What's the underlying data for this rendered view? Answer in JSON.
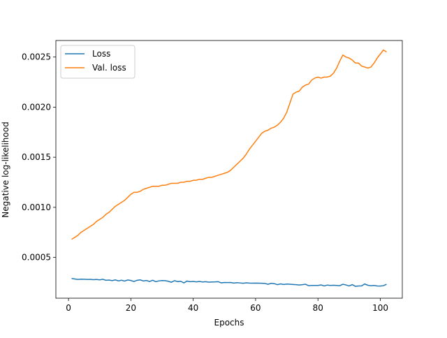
{
  "chart_data": {
    "type": "line",
    "xlabel": "Epochs",
    "ylabel": "Negative log-likelihood",
    "x": [
      1,
      2,
      3,
      4,
      5,
      6,
      7,
      8,
      9,
      10,
      11,
      12,
      13,
      14,
      15,
      16,
      17,
      18,
      19,
      20,
      21,
      22,
      23,
      24,
      25,
      26,
      27,
      28,
      29,
      30,
      31,
      32,
      33,
      34,
      35,
      36,
      37,
      38,
      39,
      40,
      41,
      42,
      43,
      44,
      45,
      46,
      47,
      48,
      49,
      50,
      51,
      52,
      53,
      54,
      55,
      56,
      57,
      58,
      59,
      60,
      61,
      62,
      63,
      64,
      65,
      66,
      67,
      68,
      69,
      70,
      71,
      72,
      73,
      74,
      75,
      76,
      77,
      78,
      79,
      80,
      81,
      82,
      83,
      84,
      85,
      86,
      87,
      88,
      89,
      90,
      91,
      92,
      93,
      94,
      95,
      96,
      97,
      98,
      99,
      100,
      101,
      102
    ],
    "series": [
      {
        "name": "Loss",
        "color": "#1f77b4",
        "values": [
          0.00029,
          0.000285,
          0.00028,
          0.000283,
          0.000282,
          0.00028,
          0.000281,
          0.000278,
          0.00028,
          0.000276,
          0.000282,
          0.000272,
          0.000274,
          0.000268,
          0.000276,
          0.000266,
          0.000272,
          0.000264,
          0.000275,
          0.00027,
          0.00026,
          0.000272,
          0.000276,
          0.000265,
          0.00027,
          0.00026,
          0.000272,
          0.000258,
          0.000266,
          0.000269,
          0.000268,
          0.000262,
          0.000252,
          0.000268,
          0.000259,
          0.000262,
          0.000245,
          0.000264,
          0.000258,
          0.00026,
          0.000256,
          0.00026,
          0.000255,
          0.000258,
          0.000253,
          0.000255,
          0.000256,
          0.000258,
          0.000246,
          0.00025,
          0.000249,
          0.00025,
          0.000244,
          0.000248,
          0.000245,
          0.000242,
          0.000246,
          0.000244,
          0.000243,
          0.000244,
          0.000243,
          0.000242,
          0.00024,
          0.000232,
          0.000242,
          0.000238,
          0.000228,
          0.000236,
          0.00023,
          0.000234,
          0.000232,
          0.00023,
          0.000228,
          0.000225,
          0.000228,
          0.000232,
          0.000218,
          0.00022,
          0.00022,
          0.00022,
          0.000225,
          0.000215,
          0.000224,
          0.00022,
          0.000222,
          0.00022,
          0.000218,
          0.000232,
          0.000225,
          0.000215,
          0.000228,
          0.000212,
          0.000215,
          0.000216,
          0.000235,
          0.000222,
          0.000218,
          0.00022,
          0.000215,
          0.000214,
          0.000218,
          0.000232
        ]
      },
      {
        "name": "Val. loss",
        "color": "#ff7f0e",
        "values": [
          0.00068,
          0.0007,
          0.00072,
          0.00075,
          0.00077,
          0.00079,
          0.00081,
          0.00083,
          0.00086,
          0.00088,
          0.0009,
          0.00093,
          0.00095,
          0.00098,
          0.00101,
          0.00103,
          0.00105,
          0.00107,
          0.0011,
          0.00113,
          0.00115,
          0.00115,
          0.00116,
          0.00118,
          0.00119,
          0.0012,
          0.00121,
          0.00121,
          0.00121,
          0.00122,
          0.00122,
          0.00123,
          0.00124,
          0.00124,
          0.00124,
          0.00125,
          0.00125,
          0.00126,
          0.00126,
          0.00127,
          0.00127,
          0.00128,
          0.00128,
          0.00129,
          0.0013,
          0.0013,
          0.00131,
          0.00132,
          0.00133,
          0.00134,
          0.00135,
          0.00137,
          0.0014,
          0.00143,
          0.00146,
          0.00149,
          0.00153,
          0.00158,
          0.00162,
          0.00166,
          0.0017,
          0.00174,
          0.00176,
          0.00177,
          0.00179,
          0.0018,
          0.00182,
          0.00185,
          0.00189,
          0.00195,
          0.00204,
          0.00213,
          0.00215,
          0.00216,
          0.0022,
          0.00222,
          0.00223,
          0.00227,
          0.00229,
          0.0023,
          0.00229,
          0.0023,
          0.0023,
          0.00231,
          0.00234,
          0.00239,
          0.00246,
          0.00252,
          0.0025,
          0.00249,
          0.00247,
          0.00244,
          0.00244,
          0.00241,
          0.0024,
          0.00239,
          0.0024,
          0.00244,
          0.00249,
          0.00253,
          0.00257,
          0.00255
        ]
      }
    ],
    "xlim": [
      -4.05,
      107.05
    ],
    "xticks": [
      0,
      20,
      40,
      60,
      80,
      100
    ],
    "ylim": [
      9.3e-05,
      0.002665
    ],
    "yticks": [
      0.0005,
      {
        "value": 0.001,
        "label": "0.0010"
      },
      0.0015,
      {
        "value": 0.002,
        "label": "0.0020"
      },
      0.0025
    ],
    "grid": false,
    "legend": "upper left"
  }
}
